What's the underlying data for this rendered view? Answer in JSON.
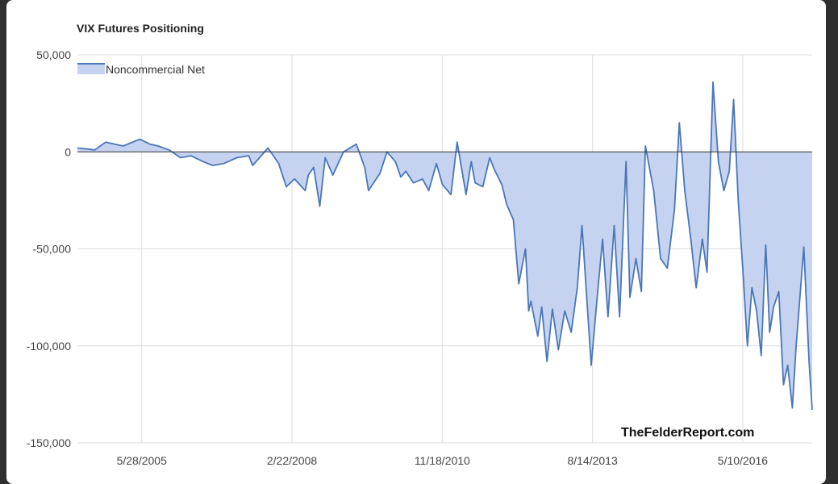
{
  "chart_data": {
    "type": "area",
    "title": "VIX Futures Positioning",
    "xlabel": "",
    "ylabel": "",
    "ylim": [
      -150000,
      50000
    ],
    "xlim": [
      "2004-03-26",
      "2017-08-15"
    ],
    "y_ticks": [
      50000,
      0,
      -50000,
      -100000,
      -150000
    ],
    "y_tick_labels": [
      "50,000",
      "0",
      "-50,000",
      "-100,000",
      "-150,000"
    ],
    "x_ticks": [
      "2005-05-28",
      "2008-02-22",
      "2010-11-18",
      "2013-08-14",
      "2016-05-10"
    ],
    "x_tick_labels": [
      "5/28/2005",
      "2/22/2008",
      "11/18/2010",
      "8/14/2013",
      "5/10/2016"
    ],
    "grid": true,
    "legend": "top-left",
    "series": [
      {
        "name": "Noncommercial Net",
        "color": "#4a76b8",
        "fill": "#c5d3f0",
        "x": [
          "2004-03-26",
          "2004-07-20",
          "2004-09-30",
          "2005-01-25",
          "2005-05-15",
          "2005-07-20",
          "2005-09-15",
          "2005-11-25",
          "2006-02-10",
          "2006-04-20",
          "2006-07-10",
          "2006-09-10",
          "2006-11-25",
          "2007-02-20",
          "2007-05-10",
          "2007-06-05",
          "2007-07-10",
          "2007-09-15",
          "2007-11-25",
          "2008-01-15",
          "2008-03-10",
          "2008-05-20",
          "2008-06-10",
          "2008-07-15",
          "2008-08-25",
          "2008-09-30",
          "2008-11-20",
          "2009-01-30",
          "2009-04-25",
          "2009-06-20",
          "2009-07-15",
          "2009-09-30",
          "2009-11-15",
          "2010-01-10",
          "2010-02-15",
          "2010-03-20",
          "2010-05-10",
          "2010-07-10",
          "2010-08-20",
          "2010-10-10",
          "2010-11-20",
          "2011-01-15",
          "2011-02-25",
          "2011-04-25",
          "2011-05-30",
          "2011-06-25",
          "2011-08-15",
          "2011-09-30",
          "2011-10-30",
          "2011-12-20",
          "2012-01-20",
          "2012-03-05",
          "2012-04-10",
          "2012-05-25",
          "2012-06-15",
          "2012-06-30",
          "2012-08-15",
          "2012-09-10",
          "2012-10-15",
          "2012-11-20",
          "2012-12-30",
          "2013-02-10",
          "2013-03-25",
          "2013-05-05",
          "2013-06-05",
          "2013-08-05",
          "2013-09-20",
          "2013-10-20",
          "2013-11-25",
          "2014-01-05",
          "2014-02-10",
          "2014-03-25",
          "2014-04-20",
          "2014-05-30",
          "2014-07-05",
          "2014-08-01",
          "2014-09-25",
          "2014-11-10",
          "2014-12-25",
          "2015-02-10",
          "2015-03-15",
          "2015-04-20",
          "2015-05-30",
          "2015-07-05",
          "2015-08-15",
          "2015-09-15",
          "2015-10-25",
          "2015-11-30",
          "2016-01-05",
          "2016-02-10",
          "2016-03-10",
          "2016-04-10",
          "2016-05-10",
          "2016-06-10",
          "2016-07-10",
          "2016-08-10",
          "2016-09-10",
          "2016-10-10",
          "2016-11-05",
          "2016-12-01",
          "2017-01-05",
          "2017-02-05",
          "2017-03-05",
          "2017-04-05",
          "2017-04-30",
          "2017-05-30",
          "2017-06-20",
          "2017-07-25",
          "2017-08-15"
        ],
        "values": [
          2000,
          1000,
          5000,
          3000,
          6500,
          4000,
          3000,
          1000,
          -3000,
          -2000,
          -5000,
          -7000,
          -6000,
          -3000,
          -2000,
          -7000,
          -4000,
          2000,
          -6000,
          -18000,
          -14000,
          -20000,
          -12000,
          -8000,
          -28000,
          -3000,
          -12000,
          0,
          4000,
          -8000,
          -20000,
          -11000,
          0,
          -5000,
          -13000,
          -10000,
          -16000,
          -14000,
          -20000,
          -6000,
          -17000,
          -22000,
          5000,
          -22000,
          -5000,
          -16000,
          -18000,
          -3000,
          -9000,
          -17000,
          -27000,
          -35000,
          -68000,
          -50000,
          -82000,
          -77000,
          -95000,
          -80000,
          -108000,
          -81000,
          -102000,
          -82000,
          -93000,
          -70000,
          -38000,
          -110000,
          -70000,
          -45000,
          -85000,
          -38000,
          -85000,
          -5000,
          -75000,
          -55000,
          -72000,
          3000,
          -20000,
          -55000,
          -60000,
          -30000,
          15000,
          -20000,
          -45000,
          -70000,
          -45000,
          -62000,
          36000,
          -5000,
          -20000,
          -10000,
          27000,
          -25000,
          -60000,
          -100000,
          -70000,
          -82000,
          -105000,
          -48000,
          -93000,
          -80000,
          -72000,
          -120000,
          -110000,
          -132000,
          -100000,
          -70000,
          -49000,
          -108000,
          -133000
        ]
      }
    ],
    "watermark": "TheFelderReport.com"
  }
}
